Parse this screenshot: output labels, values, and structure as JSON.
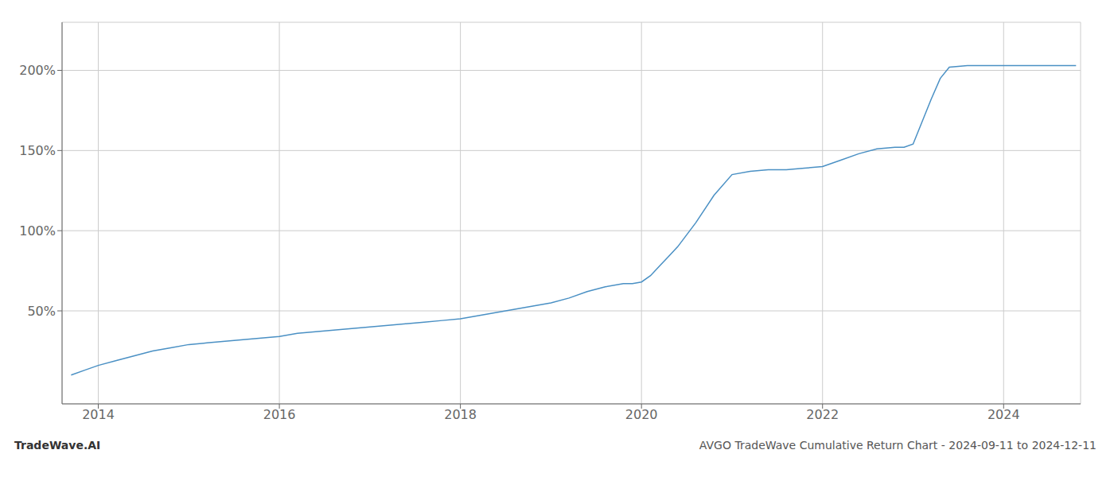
{
  "chart_data": {
    "type": "line",
    "title": "AVGO TradeWave Cumulative Return Chart - 2024-09-11 to 2024-12-11",
    "annotations": [
      "TradeWave.AI"
    ],
    "color": "#4a90c4",
    "grid": true,
    "xlim": [
      2013.6,
      2024.85
    ],
    "ylim": [
      -0.08,
      2.3
    ],
    "xticks": [
      2014,
      2016,
      2018,
      2020,
      2022,
      2024
    ],
    "yticks": [
      {
        "value": 0.5,
        "label": "50%"
      },
      {
        "value": 1.0,
        "label": "100%"
      },
      {
        "value": 1.5,
        "label": "150%"
      },
      {
        "value": 2.0,
        "label": "200%"
      }
    ],
    "x": [
      2013.7,
      2013.85,
      2014.0,
      2014.2,
      2014.4,
      2014.6,
      2014.8,
      2015.0,
      2015.2,
      2015.4,
      2015.6,
      2015.8,
      2016.0,
      2016.2,
      2016.4,
      2016.6,
      2016.8,
      2017.0,
      2017.2,
      2017.4,
      2017.6,
      2017.8,
      2018.0,
      2018.2,
      2018.4,
      2018.6,
      2018.8,
      2019.0,
      2019.2,
      2019.4,
      2019.6,
      2019.8,
      2019.9,
      2020.0,
      2020.1,
      2020.2,
      2020.3,
      2020.4,
      2020.6,
      2020.8,
      2021.0,
      2021.2,
      2021.4,
      2021.6,
      2021.8,
      2022.0,
      2022.2,
      2022.4,
      2022.6,
      2022.8,
      2022.9,
      2023.0,
      2023.1,
      2023.2,
      2023.3,
      2023.4,
      2023.6,
      2023.8,
      2024.0,
      2024.2,
      2024.5,
      2024.8
    ],
    "values": [
      0.1,
      0.13,
      0.16,
      0.19,
      0.22,
      0.25,
      0.27,
      0.29,
      0.3,
      0.31,
      0.32,
      0.33,
      0.34,
      0.36,
      0.37,
      0.38,
      0.39,
      0.4,
      0.41,
      0.42,
      0.43,
      0.44,
      0.45,
      0.47,
      0.49,
      0.51,
      0.53,
      0.55,
      0.58,
      0.62,
      0.65,
      0.67,
      0.67,
      0.68,
      0.72,
      0.78,
      0.84,
      0.9,
      1.05,
      1.22,
      1.35,
      1.37,
      1.38,
      1.38,
      1.39,
      1.4,
      1.44,
      1.48,
      1.51,
      1.52,
      1.52,
      1.54,
      1.68,
      1.82,
      1.95,
      2.02,
      2.03,
      2.03,
      2.03,
      2.03,
      2.03,
      2.03
    ]
  }
}
